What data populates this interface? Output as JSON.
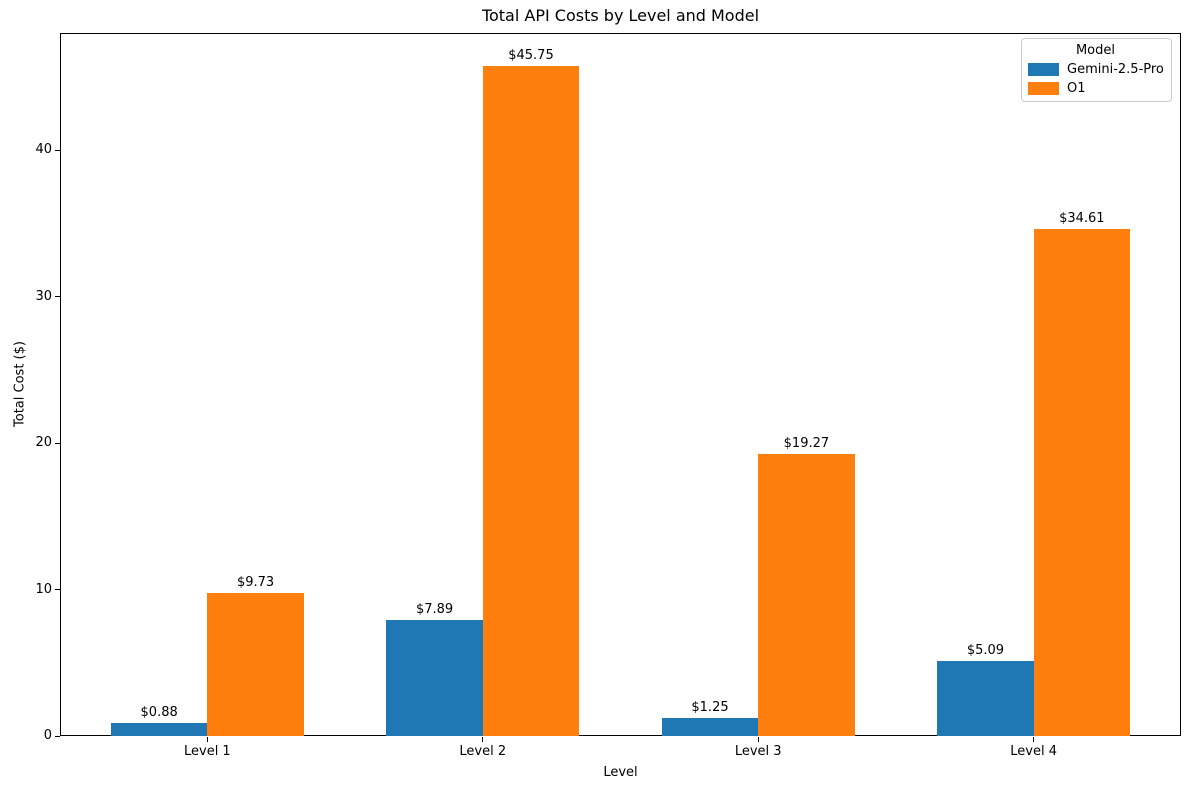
{
  "chart_data": {
    "type": "bar",
    "title": "Total API Costs by Level and Model",
    "xlabel": "Level",
    "ylabel": "Total Cost ($)",
    "categories": [
      "Level 1",
      "Level 2",
      "Level 3",
      "Level 4"
    ],
    "series": [
      {
        "name": "Gemini-2.5-Pro",
        "color": "#1f77b4",
        "values": [
          0.88,
          7.89,
          1.25,
          5.09
        ],
        "value_labels": [
          "$0.88",
          "$7.89",
          "$1.25",
          "$5.09"
        ]
      },
      {
        "name": "O1",
        "color": "#ff7f0e",
        "values": [
          9.73,
          45.75,
          19.27,
          34.61
        ],
        "value_labels": [
          "$9.73",
          "$45.75",
          "$19.27",
          "$34.61"
        ]
      }
    ],
    "legend": {
      "title": "Model",
      "position": "upper right"
    },
    "y_ticks": [
      0,
      10,
      20,
      30,
      40
    ],
    "ylim": [
      0,
      48
    ],
    "grid": false,
    "bar_group_width_fraction": 0.35
  }
}
